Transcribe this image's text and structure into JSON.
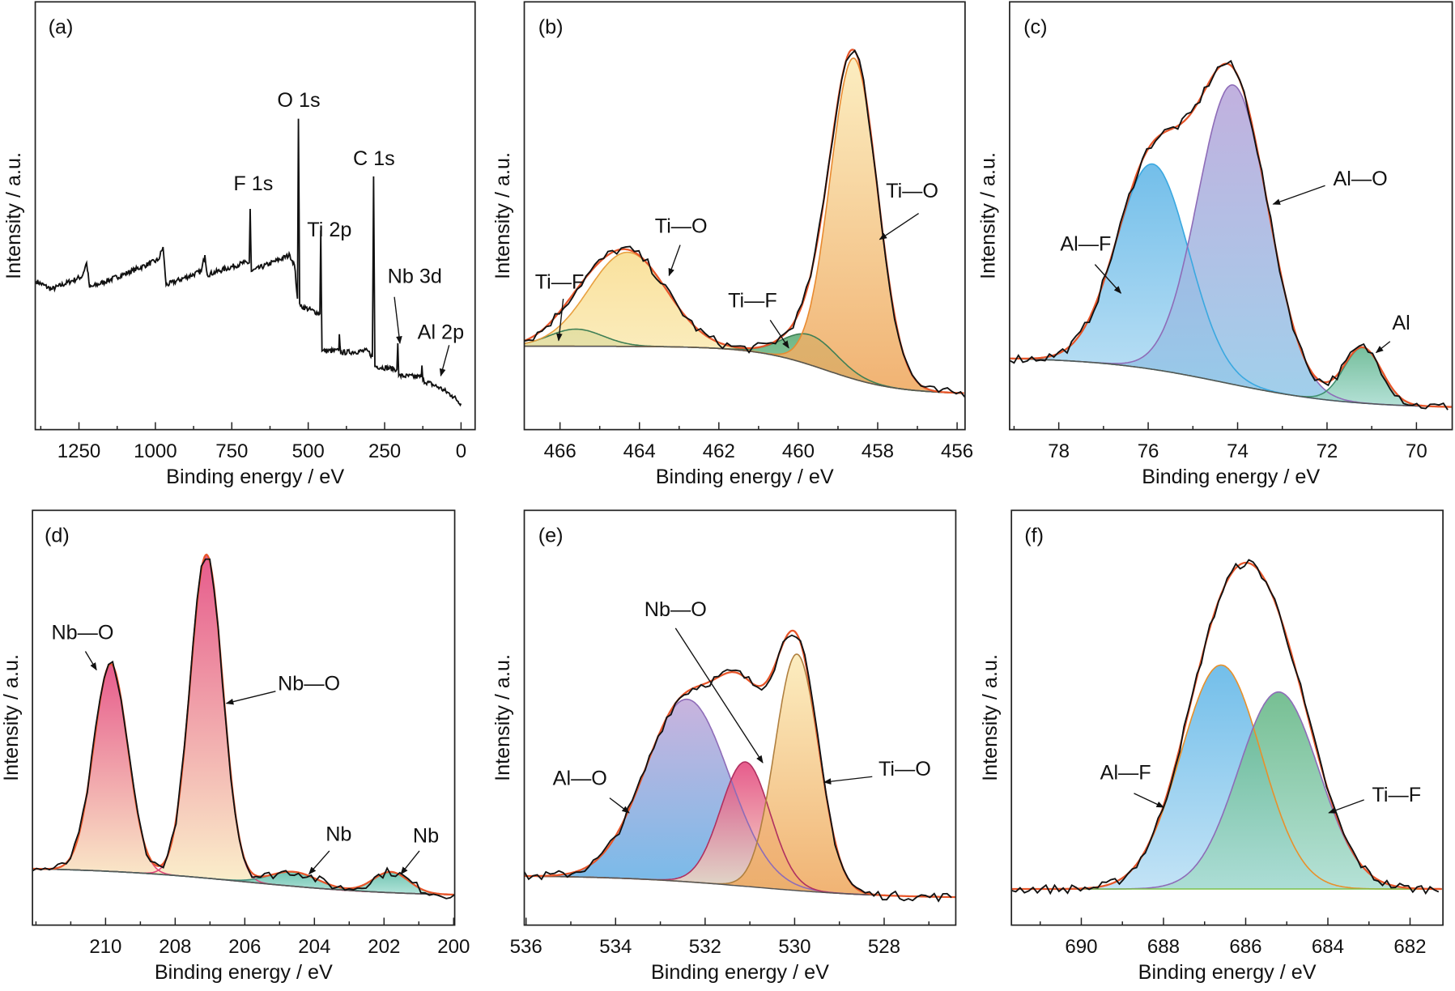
{
  "chart_data": [
    {
      "id": "a",
      "type": "line",
      "panel_label": "(a)",
      "xlabel": "Binding energy / eV",
      "ylabel": "Intensity / a.u.",
      "xlim": [
        1393,
        -46
      ],
      "ylim": [
        0,
        100
      ],
      "x_reversed": true,
      "major_ticks": [
        1250,
        1000,
        750,
        500,
        250,
        0
      ],
      "minor_step": 125,
      "y_ticks_labeled": false,
      "survey": [
        [
          1390,
          34.7
        ],
        [
          1340,
          32.8
        ],
        [
          1240,
          35.8
        ],
        [
          1225,
          39
        ],
        [
          1215,
          33.2
        ],
        [
          1100,
          36.4
        ],
        [
          990,
          39.7
        ],
        [
          975,
          42.7
        ],
        [
          965,
          33.8
        ],
        [
          850,
          37
        ],
        [
          838,
          40.8
        ],
        [
          830,
          36.2
        ],
        [
          710,
          39
        ],
        [
          693,
          39
        ],
        [
          690,
          51.6
        ],
        [
          686,
          37
        ],
        [
          560,
          40.8
        ],
        [
          545,
          38.5
        ],
        [
          535,
          30.6
        ],
        [
          532,
          72.7
        ],
        [
          528,
          29.5
        ],
        [
          525,
          28.9
        ],
        [
          462,
          27.1
        ],
        [
          459,
          46.6
        ],
        [
          455,
          18.4
        ],
        [
          400,
          18.4
        ],
        [
          398,
          22.3
        ],
        [
          394,
          18
        ],
        [
          305,
          18.4
        ],
        [
          290,
          17
        ],
        [
          286,
          59.2
        ],
        [
          282,
          14.8
        ],
        [
          210,
          14.1
        ],
        [
          207,
          20.2
        ],
        [
          204,
          12.6
        ],
        [
          130,
          12.3
        ],
        [
          128,
          15
        ],
        [
          125,
          11.5
        ],
        [
          70,
          9.8
        ],
        [
          30,
          8
        ],
        [
          0,
          6.1
        ]
      ],
      "annotations": [
        {
          "text": "O 1s",
          "x": 531
        },
        {
          "text": "F 1s",
          "x": 686
        },
        {
          "text": "Ti 2p",
          "x": 458
        },
        {
          "text": "C 1s",
          "x": 285
        },
        {
          "text": "Nb 3d",
          "x": 207
        },
        {
          "text": "Al 2p",
          "x": 74
        }
      ]
    },
    {
      "id": "b",
      "type": "line",
      "panel_label": "(b)",
      "xlabel": "Binding energy / eV",
      "ylabel": "Intensity / a.u.",
      "xlim": [
        466.9,
        455.8
      ],
      "ylim": [
        0,
        100
      ],
      "x_reversed": true,
      "major_ticks": [
        466,
        464,
        462,
        460,
        458,
        456
      ],
      "minor_step": 1,
      "background": {
        "high": 19.5,
        "low": 8.3,
        "center": 459.3,
        "width": 0.9
      },
      "components": [
        {
          "name": "Ti—F",
          "center": 465.6,
          "height": 4,
          "fwhm": 1.6,
          "line": "#3f7f55",
          "top": "#55a86e",
          "bottom": "#7cc59a"
        },
        {
          "name": "Ti—O",
          "center": 464.3,
          "height": 22,
          "fwhm": 2.3,
          "line": "#e8a040",
          "top": "#f8dc8c",
          "bottom": "#fbeec0"
        },
        {
          "name": "Ti—F",
          "center": 459.7,
          "height": 7,
          "fwhm": 1.6,
          "line": "#3f7f55",
          "top": "#55a86e",
          "bottom": "#86cba4"
        },
        {
          "name": "Ti—O",
          "center": 458.6,
          "height": 75,
          "fwhm": 1.4,
          "line": "#e88a30",
          "top": "#fbeab5",
          "bottom": "#eea55a"
        }
      ],
      "envelope_color": "#e8562a",
      "annotations": [
        {
          "text": "Ti—F"
        },
        {
          "text": "Ti—O"
        },
        {
          "text": "Ti—F"
        },
        {
          "text": "Ti—O"
        }
      ]
    },
    {
      "id": "c",
      "type": "line",
      "panel_label": "(c)",
      "xlabel": "Binding energy / eV",
      "ylabel": "Intensity / a.u.",
      "xlim": [
        79.1,
        69.2
      ],
      "ylim": [
        0,
        100
      ],
      "x_reversed": true,
      "major_ticks": [
        78,
        76,
        74,
        72,
        70
      ],
      "minor_step": 1,
      "background": {
        "high": 17,
        "low": 5,
        "center": 74.3,
        "width": 1.4
      },
      "components": [
        {
          "name": "Al—F",
          "center": 75.9,
          "height": 48,
          "fwhm": 1.9,
          "line": "#3aa8e0",
          "top": "#5ab3e6",
          "bottom": "#b8def4"
        },
        {
          "name": "Al—O",
          "center": 74.1,
          "height": 70,
          "fwhm": 1.85,
          "line": "#8e6cb8",
          "top": "#b7a3d9",
          "bottom": "#8fc8e8"
        },
        {
          "name": "Al",
          "center": 71.2,
          "height": 13,
          "fwhm": 1.0,
          "line": "#3f8f6f",
          "top": "#5fb48c",
          "bottom": "#a8dcd0"
        }
      ],
      "envelope_color": "#e8562a",
      "annotations": [
        {
          "text": "Al—F"
        },
        {
          "text": "Al—O"
        },
        {
          "text": "Al"
        }
      ]
    },
    {
      "id": "d",
      "type": "line",
      "panel_label": "(d)",
      "xlabel": "Binding energy / eV",
      "ylabel": "Intensity / a.u.",
      "xlim": [
        212.1,
        199.97
      ],
      "ylim": [
        0,
        100
      ],
      "x_reversed": true,
      "major_ticks": [
        210,
        208,
        206,
        204,
        202,
        200
      ],
      "minor_step": 1,
      "background": {
        "high": 14,
        "low": 6.9,
        "center": 206,
        "width": 2.2
      },
      "components": [
        {
          "name": "Nb—O",
          "center": 209.85,
          "height": 50,
          "fwhm": 1.15,
          "line": "#e0457a",
          "top": "#e23f78",
          "bottom": "#fbf2c4"
        },
        {
          "name": "Nb—O",
          "center": 207.1,
          "height": 78,
          "fwhm": 1.1,
          "line": "#e0457a",
          "top": "#e23f78",
          "bottom": "#fbf2c4"
        },
        {
          "name": "Nb",
          "center": 204.6,
          "height": 3.5,
          "fwhm": 1.6,
          "line": "#3f8f7f",
          "top": "#4fb6a0",
          "bottom": "#a8e0d4"
        },
        {
          "name": "Nb",
          "center": 201.8,
          "height": 5,
          "fwhm": 1.2,
          "line": "#3f8f7f",
          "top": "#4fb6a0",
          "bottom": "#a8e0d4"
        }
      ],
      "envelope_color": "#e8562a",
      "annotations": [
        {
          "text": "Nb—O"
        },
        {
          "text": "Nb—O"
        },
        {
          "text": "Nb"
        },
        {
          "text": "Nb"
        }
      ]
    },
    {
      "id": "e",
      "type": "line",
      "panel_label": "(e)",
      "xlabel": "Binding energy / eV",
      "ylabel": "Intensity / a.u.",
      "xlim": [
        536.04,
        526.4
      ],
      "ylim": [
        0,
        100
      ],
      "x_reversed": true,
      "major_ticks": [
        536,
        534,
        532,
        530,
        528
      ],
      "minor_step": 1,
      "background": {
        "high": 12,
        "low": 6.5,
        "center": 531,
        "width": 1.5
      },
      "components": [
        {
          "name": "Al—O",
          "center": 532.4,
          "height": 44,
          "fwhm": 2.2,
          "line": "#8e6cb8",
          "top": "#c0a6d8",
          "bottom": "#5aafe6"
        },
        {
          "name": "Nb—O",
          "center": 531.1,
          "height": 30,
          "fwhm": 1.3,
          "line": "#b03060",
          "top": "#e23f78",
          "bottom": "#f4e8c8"
        },
        {
          "name": "Ti—O",
          "center": 529.95,
          "height": 57,
          "fwhm": 1.15,
          "line": "#b08040",
          "top": "#fbeab5",
          "bottom": "#eea55a"
        }
      ],
      "envelope_color": "#e8562a",
      "annotations": [
        {
          "text": "Nb—O"
        },
        {
          "text": "Al—O"
        },
        {
          "text": "Ti—O"
        }
      ]
    },
    {
      "id": "f",
      "type": "line",
      "panel_label": "(f)",
      "xlabel": "Binding energy / eV",
      "ylabel": "Intensity / a.u.",
      "xlim": [
        691.7,
        681.2
      ],
      "ylim": [
        0,
        100
      ],
      "x_reversed": true,
      "major_ticks": [
        690,
        688,
        686,
        684,
        682
      ],
      "minor_step": 1,
      "background": {
        "high": 8.7,
        "low": 8.7,
        "center": 686,
        "width": 1
      },
      "components": [
        {
          "name": "Al—F",
          "center": 686.6,
          "height": 54,
          "fwhm": 2.3,
          "line": "#e8902a",
          "top": "#5ab3e6",
          "bottom": "#b8def4"
        },
        {
          "name": "Ti—F",
          "center": 685.2,
          "height": 47.5,
          "fwhm": 2.3,
          "line": "#8e6cb8",
          "top": "#5fb480",
          "bottom": "#a8dcd0"
        }
      ],
      "baseline_color": "#7cc04a",
      "envelope_color": "#e8562a",
      "annotations": [
        {
          "text": "Al—F"
        },
        {
          "text": "Ti—F"
        }
      ]
    }
  ]
}
